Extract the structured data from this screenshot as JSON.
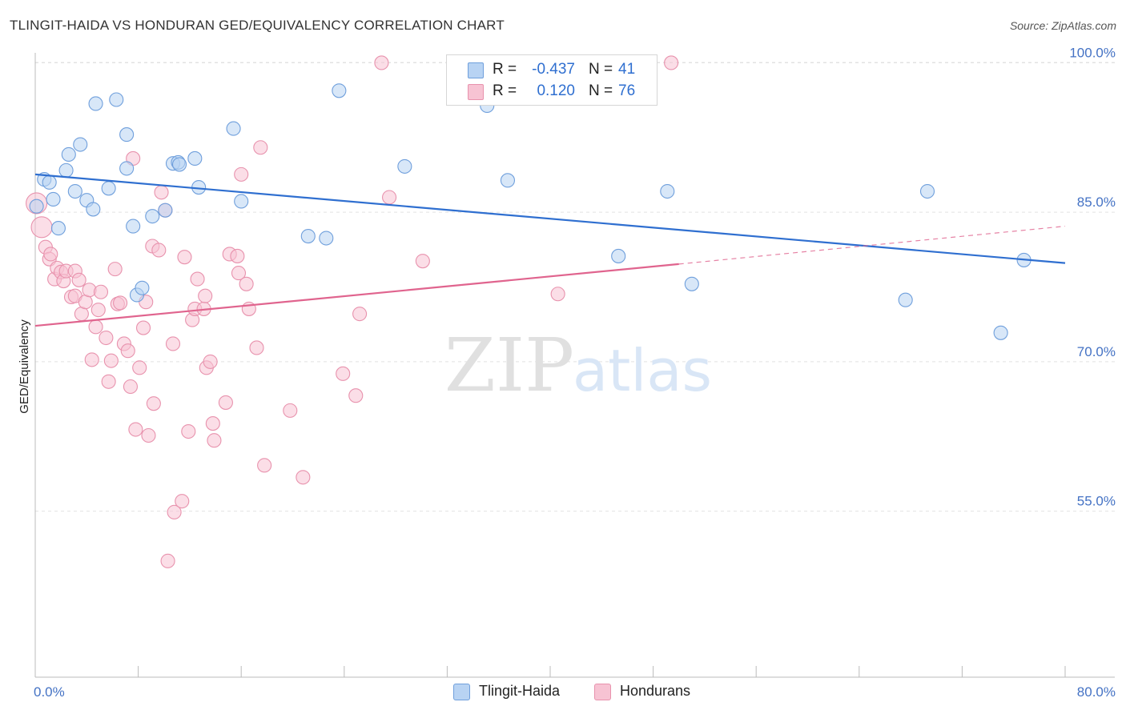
{
  "header": {
    "title": "TLINGIT-HAIDA VS HONDURAN GED/EQUIVALENCY CORRELATION CHART",
    "source": "Source: ZipAtlas.com"
  },
  "watermark": {
    "zip": "ZIP",
    "atlas": "atlas"
  },
  "colors": {
    "blue_fill": "#b8d3f3",
    "blue_stroke": "#6f9fdc",
    "blue_line": "#2f6fd0",
    "pink_fill": "#f7c3d3",
    "pink_stroke": "#e892ad",
    "pink_line": "#e0648e",
    "axis_text": "#4472c4",
    "grid": "#e2e2e2"
  },
  "legend_top": {
    "rows": [
      {
        "r_label": "R =",
        "r_value": "-0.437",
        "n_label": "N =",
        "n_value": "41"
      },
      {
        "r_label": "R =",
        "r_value": "0.120",
        "n_label": "N =",
        "n_value": "76"
      }
    ]
  },
  "legend_bottom": {
    "items": [
      "Tlingit-Haida",
      "Hondurans"
    ]
  },
  "chart_data": {
    "type": "scatter",
    "title": "TLINGIT-HAIDA VS HONDURAN GED/EQUIVALENCY CORRELATION CHART",
    "xlabel": "",
    "ylabel": "GED/Equivalency",
    "xlim": [
      0,
      80
    ],
    "ylim": [
      38.5,
      101
    ],
    "x_tick_labels": [
      "0.0%",
      "80.0%"
    ],
    "y_ticks": [
      55,
      70,
      85,
      100
    ],
    "y_tick_labels": [
      "55.0%",
      "70.0%",
      "85.0%",
      "100.0%"
    ],
    "grid": true,
    "legend_position": "top-center",
    "series": [
      {
        "name": "Tlingit-Haida",
        "r": -0.437,
        "n": 41,
        "trend": {
          "x": [
            0,
            80
          ],
          "y": [
            88.8,
            79.9
          ]
        },
        "points": [
          [
            0.1,
            85.6
          ],
          [
            0.7,
            88.3
          ],
          [
            1.1,
            88.0
          ],
          [
            1.4,
            86.3
          ],
          [
            1.8,
            83.4
          ],
          [
            2.4,
            89.2
          ],
          [
            2.6,
            90.8
          ],
          [
            3.1,
            87.1
          ],
          [
            3.5,
            91.8
          ],
          [
            4.0,
            86.2
          ],
          [
            4.5,
            85.3
          ],
          [
            4.7,
            95.9
          ],
          [
            5.7,
            87.4
          ],
          [
            6.3,
            96.3
          ],
          [
            7.1,
            92.8
          ],
          [
            7.1,
            89.4
          ],
          [
            7.6,
            83.6
          ],
          [
            7.9,
            76.7
          ],
          [
            8.3,
            77.4
          ],
          [
            9.1,
            84.6
          ],
          [
            10.1,
            85.2
          ],
          [
            10.7,
            89.9
          ],
          [
            11.1,
            90.0
          ],
          [
            11.2,
            89.8
          ],
          [
            12.4,
            90.4
          ],
          [
            12.7,
            87.5
          ],
          [
            15.4,
            93.4
          ],
          [
            16.0,
            86.1
          ],
          [
            21.2,
            82.6
          ],
          [
            22.6,
            82.4
          ],
          [
            23.6,
            97.2
          ],
          [
            28.7,
            89.6
          ],
          [
            35.1,
            95.7
          ],
          [
            36.7,
            88.2
          ],
          [
            45.3,
            80.6
          ],
          [
            49.1,
            87.1
          ],
          [
            51.0,
            77.8
          ],
          [
            67.6,
            76.2
          ],
          [
            69.3,
            87.1
          ],
          [
            75.0,
            72.9
          ],
          [
            76.8,
            80.2
          ]
        ]
      },
      {
        "name": "Hondurans",
        "r": 0.12,
        "n": 76,
        "trend": {
          "x": [
            0,
            50
          ],
          "y": [
            73.6,
            79.8
          ]
        },
        "trend_dashed": {
          "x": [
            50,
            80
          ],
          "y": [
            79.8,
            83.6
          ]
        },
        "points": [
          [
            0.1,
            85.9
          ],
          [
            0.5,
            83.5
          ],
          [
            0.8,
            81.5
          ],
          [
            1.1,
            80.3
          ],
          [
            1.2,
            80.8
          ],
          [
            1.5,
            78.3
          ],
          [
            1.7,
            79.4
          ],
          [
            2.0,
            79.0
          ],
          [
            2.2,
            78.1
          ],
          [
            2.4,
            79.1
          ],
          [
            2.8,
            76.5
          ],
          [
            3.1,
            76.6
          ],
          [
            3.1,
            79.1
          ],
          [
            3.4,
            78.2
          ],
          [
            3.6,
            74.8
          ],
          [
            3.9,
            76.0
          ],
          [
            4.2,
            77.2
          ],
          [
            4.4,
            70.2
          ],
          [
            4.7,
            73.5
          ],
          [
            4.9,
            75.2
          ],
          [
            5.1,
            77.0
          ],
          [
            5.5,
            72.4
          ],
          [
            5.7,
            68.0
          ],
          [
            5.9,
            70.1
          ],
          [
            6.2,
            79.3
          ],
          [
            6.4,
            75.8
          ],
          [
            6.6,
            75.9
          ],
          [
            6.9,
            71.8
          ],
          [
            7.2,
            71.1
          ],
          [
            7.4,
            67.5
          ],
          [
            7.6,
            90.4
          ],
          [
            7.8,
            63.2
          ],
          [
            8.1,
            69.4
          ],
          [
            8.4,
            73.4
          ],
          [
            8.6,
            76.0
          ],
          [
            8.8,
            62.6
          ],
          [
            9.1,
            81.6
          ],
          [
            9.2,
            65.8
          ],
          [
            9.6,
            81.2
          ],
          [
            9.8,
            87.0
          ],
          [
            10.1,
            85.2
          ],
          [
            10.3,
            50.0
          ],
          [
            10.7,
            71.8
          ],
          [
            10.8,
            54.9
          ],
          [
            11.4,
            56.0
          ],
          [
            11.6,
            80.5
          ],
          [
            11.9,
            63.0
          ],
          [
            12.2,
            74.2
          ],
          [
            12.4,
            75.3
          ],
          [
            12.6,
            78.3
          ],
          [
            13.1,
            75.3
          ],
          [
            13.2,
            76.6
          ],
          [
            13.3,
            69.4
          ],
          [
            13.6,
            70.0
          ],
          [
            13.8,
            63.8
          ],
          [
            13.9,
            62.1
          ],
          [
            14.8,
            65.9
          ],
          [
            15.1,
            80.8
          ],
          [
            15.7,
            80.6
          ],
          [
            15.8,
            78.9
          ],
          [
            16.0,
            88.8
          ],
          [
            16.4,
            77.8
          ],
          [
            16.6,
            75.3
          ],
          [
            17.2,
            71.4
          ],
          [
            17.5,
            91.5
          ],
          [
            17.8,
            59.6
          ],
          [
            19.8,
            65.1
          ],
          [
            20.8,
            58.4
          ],
          [
            23.9,
            68.8
          ],
          [
            24.9,
            66.6
          ],
          [
            25.2,
            74.8
          ],
          [
            26.9,
            100.0
          ],
          [
            27.5,
            86.5
          ],
          [
            30.1,
            80.1
          ],
          [
            40.6,
            76.8
          ],
          [
            49.4,
            100.0
          ]
        ]
      }
    ]
  }
}
